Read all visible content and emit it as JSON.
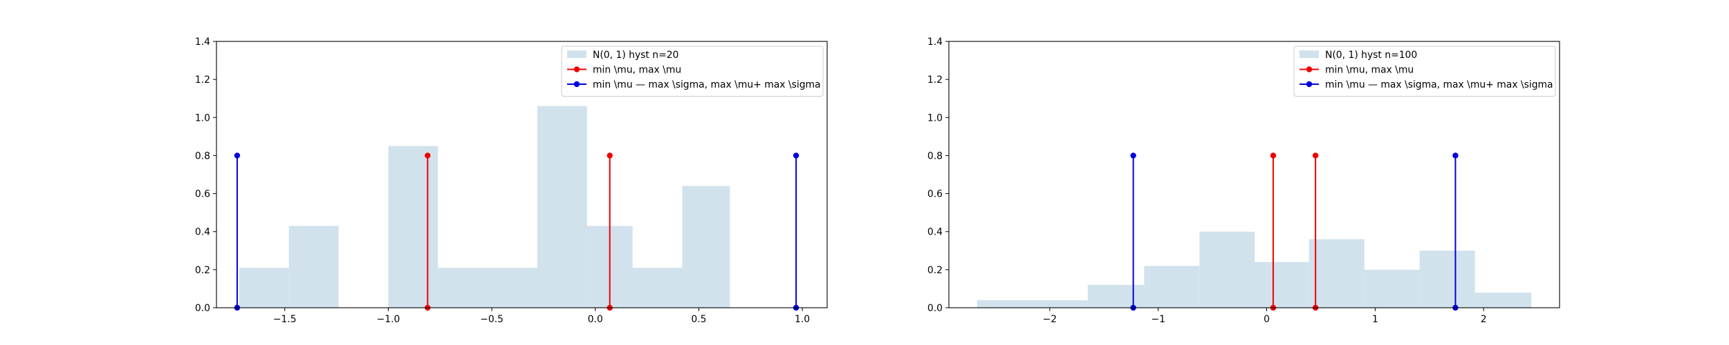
{
  "chart_data": [
    {
      "type": "bar",
      "title": "",
      "xlabel": "",
      "ylabel": "",
      "xlim": [
        -1.83,
        1.12
      ],
      "ylim": [
        0,
        1.4
      ],
      "grid": false,
      "legend_position": "top-right",
      "x_ticks": [
        {
          "value": -1.5,
          "label": "−1.5"
        },
        {
          "value": -1.0,
          "label": "−1.0"
        },
        {
          "value": -0.5,
          "label": "−0.5"
        },
        {
          "value": 0.0,
          "label": "0.0"
        },
        {
          "value": 0.5,
          "label": "0.5"
        },
        {
          "value": 1.0,
          "label": "1.0"
        }
      ],
      "y_ticks": [
        {
          "value": 0.0,
          "label": "0.0"
        },
        {
          "value": 0.2,
          "label": "0.2"
        },
        {
          "value": 0.4,
          "label": "0.4"
        },
        {
          "value": 0.6,
          "label": "0.6"
        },
        {
          "value": 0.8,
          "label": "0.8"
        },
        {
          "value": 1.0,
          "label": "1.0"
        },
        {
          "value": 1.2,
          "label": "1.2"
        },
        {
          "value": 1.4,
          "label": "1.4"
        }
      ],
      "histogram": {
        "name": "N(0, 1) hyst n=20",
        "color": "#d1e2ed",
        "bins": [
          {
            "x0": -1.72,
            "x1": -1.48,
            "height": 0.21
          },
          {
            "x0": -1.48,
            "x1": -1.24,
            "height": 0.43
          },
          {
            "x0": -1.24,
            "x1": -1.0,
            "height": 0.0
          },
          {
            "x0": -1.0,
            "x1": -0.76,
            "height": 0.85
          },
          {
            "x0": -0.76,
            "x1": -0.52,
            "height": 0.21
          },
          {
            "x0": -0.52,
            "x1": -0.28,
            "height": 0.21
          },
          {
            "x0": -0.28,
            "x1": -0.04,
            "height": 1.06
          },
          {
            "x0": -0.04,
            "x1": 0.18,
            "height": 0.43
          },
          {
            "x0": 0.18,
            "x1": 0.42,
            "height": 0.21
          },
          {
            "x0": 0.42,
            "x1": 0.65,
            "height": 0.64
          }
        ]
      },
      "stem_series": [
        {
          "name": "min \\mu, max \\mu",
          "color": "#ee0000",
          "x": [
            -0.81,
            0.07
          ],
          "top": 0.8
        },
        {
          "name": "min \\mu — max \\sigma, max \\mu+ max \\sigma",
          "color": "#0000dd",
          "x": [
            -1.73,
            0.97
          ],
          "top": 0.8
        }
      ]
    },
    {
      "type": "bar",
      "title": "",
      "xlabel": "",
      "ylabel": "",
      "xlim": [
        -2.93,
        2.7
      ],
      "ylim": [
        0,
        1.4
      ],
      "grid": false,
      "legend_position": "top-right",
      "x_ticks": [
        {
          "value": -2,
          "label": "−2"
        },
        {
          "value": -1,
          "label": "−1"
        },
        {
          "value": 0,
          "label": "0"
        },
        {
          "value": 1,
          "label": "1"
        },
        {
          "value": 2,
          "label": "2"
        }
      ],
      "y_ticks": [
        {
          "value": 0.0,
          "label": "0.0"
        },
        {
          "value": 0.2,
          "label": "0.2"
        },
        {
          "value": 0.4,
          "label": "0.4"
        },
        {
          "value": 0.6,
          "label": "0.6"
        },
        {
          "value": 0.8,
          "label": "0.8"
        },
        {
          "value": 1.0,
          "label": "1.0"
        },
        {
          "value": 1.2,
          "label": "1.2"
        },
        {
          "value": 1.4,
          "label": "1.4"
        }
      ],
      "histogram": {
        "name": "N(0, 1) hyst n=100",
        "color": "#d1e2ed",
        "bins": [
          {
            "x0": -2.67,
            "x1": -1.65,
            "height": 0.04
          },
          {
            "x0": -1.65,
            "x1": -1.13,
            "height": 0.12
          },
          {
            "x0": -1.13,
            "x1": -0.62,
            "height": 0.22
          },
          {
            "x0": -0.62,
            "x1": -0.11,
            "height": 0.4
          },
          {
            "x0": -0.11,
            "x1": 0.39,
            "height": 0.24
          },
          {
            "x0": 0.39,
            "x1": 0.9,
            "height": 0.36
          },
          {
            "x0": 0.9,
            "x1": 1.41,
            "height": 0.2
          },
          {
            "x0": 1.41,
            "x1": 1.92,
            "height": 0.3
          },
          {
            "x0": 1.92,
            "x1": 2.44,
            "height": 0.08
          }
        ]
      },
      "stem_series": [
        {
          "name": "min \\mu, max \\mu",
          "color": "#ee0000",
          "x": [
            0.06,
            0.45
          ],
          "top": 0.8
        },
        {
          "name": "min \\mu — max \\sigma, max \\mu+ max \\sigma",
          "color": "#0000dd",
          "x": [
            -1.23,
            1.74
          ],
          "top": 0.8
        }
      ]
    }
  ]
}
